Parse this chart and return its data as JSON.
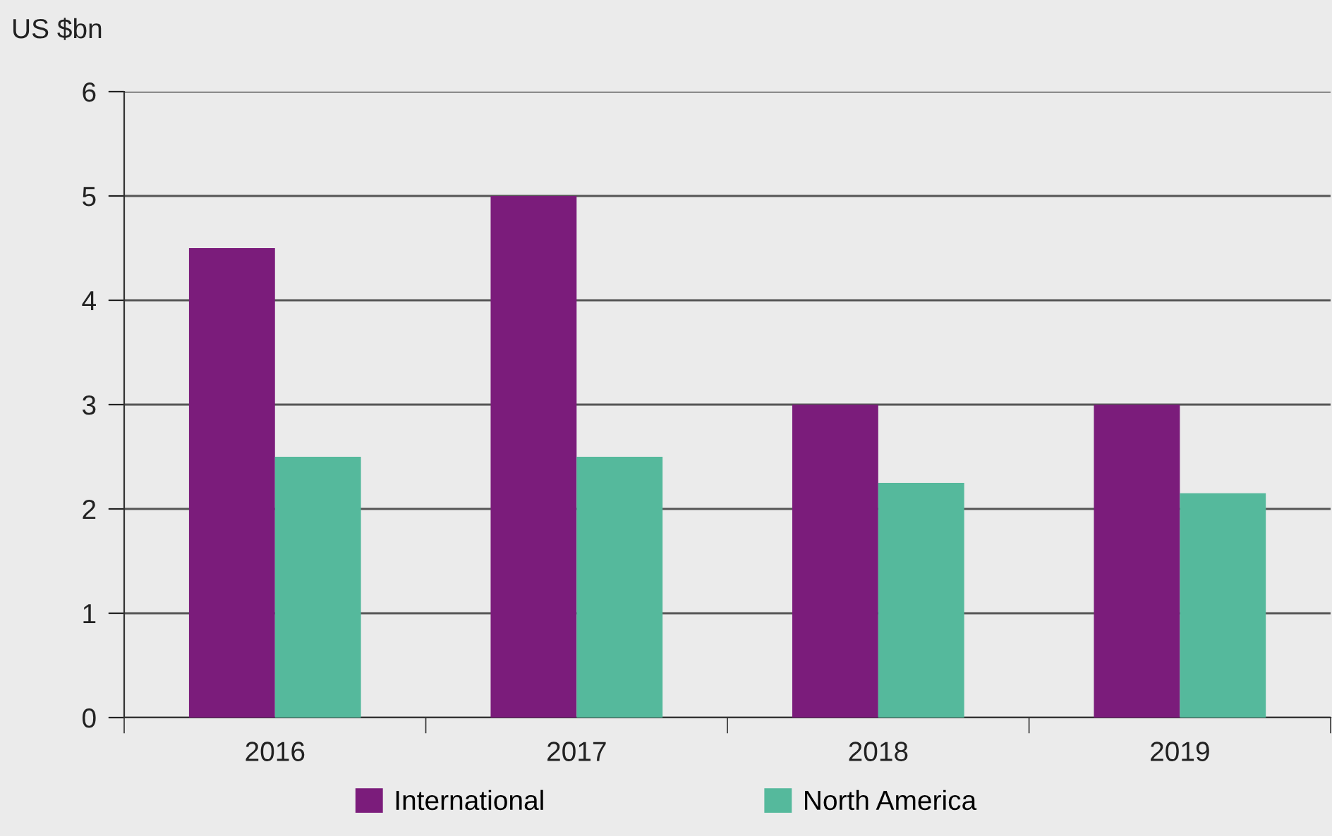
{
  "chart_data": {
    "type": "bar",
    "ylabel": "US $bn",
    "categories": [
      "2016",
      "2017",
      "2018",
      "2019"
    ],
    "series": [
      {
        "name": "International",
        "color": "#7b1c7b",
        "values": [
          4.5,
          5,
          3,
          3
        ]
      },
      {
        "name": "North America",
        "color": "#55b99c",
        "values": [
          2.5,
          2.5,
          2.25,
          2.15
        ]
      }
    ],
    "ylim": [
      0,
      6
    ],
    "yticks": [
      0,
      1,
      2,
      3,
      4,
      5,
      6
    ],
    "grid": "y",
    "legend": "bottom"
  }
}
